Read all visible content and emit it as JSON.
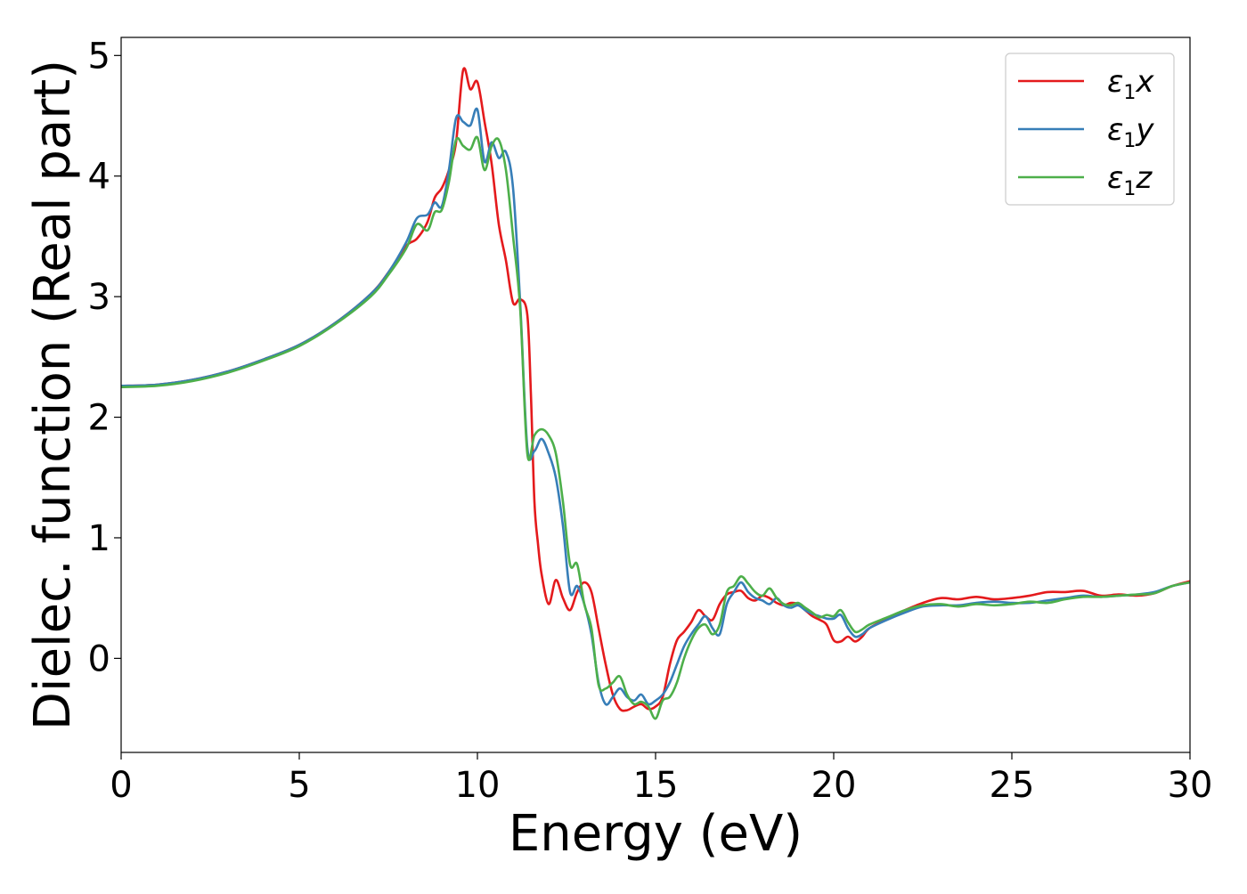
{
  "chart_data": {
    "type": "line",
    "title": "",
    "xlabel": "Energy (eV)",
    "ylabel": "Dielec. function (Real part)",
    "xlim": [
      0,
      30
    ],
    "ylim": [
      -0.78,
      5.15
    ],
    "xticks": [
      0,
      5,
      10,
      15,
      20,
      25,
      30
    ],
    "yticks": [
      0,
      1,
      2,
      3,
      4,
      5
    ],
    "xtick_labels": [
      "0",
      "5",
      "10",
      "15",
      "20",
      "25",
      "30"
    ],
    "ytick_labels": [
      "0",
      "1",
      "2",
      "3",
      "4",
      "5"
    ],
    "grid": false,
    "legend_position": "top-right",
    "series": [
      {
        "name": "ε1x",
        "legend_base": "ε",
        "legend_sub": "1",
        "legend_var": "x",
        "color": "#e41a1c",
        "x": [
          0,
          1,
          2,
          3,
          4,
          5,
          6,
          7,
          7.5,
          8,
          8.3,
          8.6,
          8.8,
          9.0,
          9.2,
          9.4,
          9.6,
          9.8,
          10.0,
          10.2,
          10.4,
          10.6,
          10.8,
          11.0,
          11.2,
          11.4,
          11.5,
          11.6,
          11.7,
          11.8,
          12.0,
          12.2,
          12.4,
          12.6,
          12.8,
          13.0,
          13.2,
          13.4,
          13.6,
          13.8,
          14.0,
          14.2,
          14.4,
          14.6,
          14.8,
          15.0,
          15.2,
          15.4,
          15.6,
          15.8,
          16.0,
          16.2,
          16.4,
          16.6,
          16.8,
          17.0,
          17.2,
          17.4,
          17.6,
          17.8,
          18.0,
          18.2,
          18.4,
          18.6,
          18.8,
          19.0,
          19.2,
          19.4,
          19.6,
          19.8,
          20.0,
          20.2,
          20.4,
          20.6,
          20.8,
          21.0,
          21.5,
          22.0,
          22.5,
          23.0,
          23.5,
          24.0,
          24.5,
          25.0,
          25.5,
          26.0,
          26.5,
          27.0,
          27.5,
          28.0,
          28.5,
          29.0,
          29.5,
          30.0
        ],
        "y": [
          2.26,
          2.27,
          2.31,
          2.38,
          2.48,
          2.6,
          2.78,
          3.02,
          3.2,
          3.42,
          3.48,
          3.62,
          3.82,
          3.9,
          4.05,
          4.28,
          4.88,
          4.72,
          4.78,
          4.45,
          4.1,
          3.6,
          3.3,
          2.95,
          2.98,
          2.85,
          2.2,
          1.3,
          0.95,
          0.7,
          0.45,
          0.65,
          0.5,
          0.4,
          0.55,
          0.63,
          0.55,
          0.25,
          -0.05,
          -0.3,
          -0.42,
          -0.43,
          -0.4,
          -0.38,
          -0.42,
          -0.4,
          -0.32,
          -0.05,
          0.15,
          0.22,
          0.3,
          0.4,
          0.35,
          0.32,
          0.45,
          0.53,
          0.55,
          0.56,
          0.5,
          0.48,
          0.52,
          0.5,
          0.46,
          0.44,
          0.46,
          0.45,
          0.4,
          0.35,
          0.32,
          0.28,
          0.15,
          0.14,
          0.18,
          0.14,
          0.18,
          0.25,
          0.33,
          0.4,
          0.46,
          0.5,
          0.49,
          0.51,
          0.49,
          0.5,
          0.52,
          0.55,
          0.55,
          0.56,
          0.52,
          0.53,
          0.52,
          0.54,
          0.6,
          0.64
        ]
      },
      {
        "name": "ε1y",
        "legend_base": "ε",
        "legend_sub": "1",
        "legend_var": "y",
        "color": "#377eb8",
        "x": [
          0,
          1,
          2,
          3,
          4,
          5,
          6,
          7,
          7.5,
          8,
          8.3,
          8.6,
          8.8,
          9.0,
          9.2,
          9.4,
          9.6,
          9.8,
          10.0,
          10.2,
          10.4,
          10.6,
          10.8,
          11.0,
          11.2,
          11.4,
          11.6,
          11.8,
          12.0,
          12.2,
          12.4,
          12.6,
          12.8,
          13.0,
          13.2,
          13.4,
          13.6,
          13.8,
          14.0,
          14.2,
          14.4,
          14.6,
          14.8,
          15.0,
          15.2,
          15.4,
          15.6,
          15.8,
          16.0,
          16.2,
          16.4,
          16.6,
          16.8,
          17.0,
          17.2,
          17.4,
          17.6,
          17.8,
          18.0,
          18.2,
          18.4,
          18.6,
          18.8,
          19.0,
          19.2,
          19.4,
          19.6,
          19.8,
          20.0,
          20.2,
          20.4,
          20.6,
          20.8,
          21.0,
          21.5,
          22.0,
          22.5,
          23.0,
          23.5,
          24.0,
          24.5,
          25.0,
          25.5,
          26.0,
          26.5,
          27.0,
          27.5,
          28.0,
          28.5,
          29.0,
          29.5,
          30.0
        ],
        "y": [
          2.26,
          2.27,
          2.31,
          2.38,
          2.48,
          2.6,
          2.78,
          3.02,
          3.2,
          3.45,
          3.65,
          3.68,
          3.78,
          3.75,
          4.05,
          4.48,
          4.45,
          4.42,
          4.55,
          4.12,
          4.28,
          4.15,
          4.2,
          3.9,
          2.95,
          1.75,
          1.72,
          1.82,
          1.7,
          1.5,
          1.1,
          0.55,
          0.6,
          0.45,
          0.2,
          -0.2,
          -0.38,
          -0.32,
          -0.25,
          -0.32,
          -0.35,
          -0.3,
          -0.38,
          -0.35,
          -0.3,
          -0.2,
          -0.05,
          0.1,
          0.2,
          0.28,
          0.35,
          0.25,
          0.2,
          0.45,
          0.55,
          0.63,
          0.55,
          0.5,
          0.48,
          0.45,
          0.5,
          0.44,
          0.42,
          0.44,
          0.4,
          0.37,
          0.35,
          0.33,
          0.33,
          0.36,
          0.25,
          0.18,
          0.2,
          0.25,
          0.32,
          0.38,
          0.43,
          0.44,
          0.44,
          0.46,
          0.47,
          0.46,
          0.46,
          0.48,
          0.5,
          0.52,
          0.51,
          0.52,
          0.53,
          0.55,
          0.6,
          0.63
        ]
      },
      {
        "name": "ε1z",
        "legend_base": "ε",
        "legend_sub": "1",
        "legend_var": "z",
        "color": "#4daf4a",
        "x": [
          0,
          1,
          2,
          3,
          4,
          5,
          6,
          7,
          7.5,
          8,
          8.3,
          8.6,
          8.8,
          9.0,
          9.2,
          9.4,
          9.6,
          9.8,
          10.0,
          10.2,
          10.4,
          10.6,
          10.8,
          11.0,
          11.2,
          11.4,
          11.6,
          11.8,
          12.0,
          12.2,
          12.4,
          12.6,
          12.8,
          13.0,
          13.2,
          13.4,
          13.6,
          13.8,
          14.0,
          14.2,
          14.4,
          14.6,
          14.8,
          15.0,
          15.2,
          15.4,
          15.6,
          15.8,
          16.0,
          16.2,
          16.4,
          16.6,
          16.8,
          17.0,
          17.2,
          17.4,
          17.6,
          17.8,
          18.0,
          18.2,
          18.4,
          18.6,
          18.8,
          19.0,
          19.2,
          19.4,
          19.6,
          19.8,
          20.0,
          20.2,
          20.4,
          20.6,
          20.8,
          21.0,
          21.5,
          22.0,
          22.5,
          23.0,
          23.5,
          24.0,
          24.5,
          25.0,
          25.5,
          26.0,
          26.5,
          27.0,
          27.5,
          28.0,
          28.5,
          29.0,
          29.5,
          30.0
        ],
        "y": [
          2.25,
          2.26,
          2.3,
          2.37,
          2.47,
          2.59,
          2.77,
          3.0,
          3.18,
          3.4,
          3.6,
          3.55,
          3.7,
          3.72,
          3.95,
          4.3,
          4.25,
          4.22,
          4.32,
          4.05,
          4.25,
          4.3,
          4.05,
          3.5,
          2.9,
          1.7,
          1.85,
          1.9,
          1.85,
          1.7,
          1.3,
          0.78,
          0.78,
          0.45,
          0.25,
          -0.22,
          -0.25,
          -0.2,
          -0.15,
          -0.3,
          -0.38,
          -0.36,
          -0.4,
          -0.5,
          -0.35,
          -0.32,
          -0.2,
          0.0,
          0.15,
          0.25,
          0.28,
          0.2,
          0.28,
          0.55,
          0.6,
          0.68,
          0.62,
          0.55,
          0.52,
          0.58,
          0.5,
          0.45,
          0.44,
          0.46,
          0.42,
          0.38,
          0.34,
          0.36,
          0.35,
          0.4,
          0.3,
          0.22,
          0.24,
          0.28,
          0.34,
          0.4,
          0.44,
          0.45,
          0.43,
          0.45,
          0.44,
          0.45,
          0.47,
          0.46,
          0.49,
          0.51,
          0.51,
          0.52,
          0.53,
          0.54,
          0.6,
          0.63
        ]
      }
    ]
  }
}
